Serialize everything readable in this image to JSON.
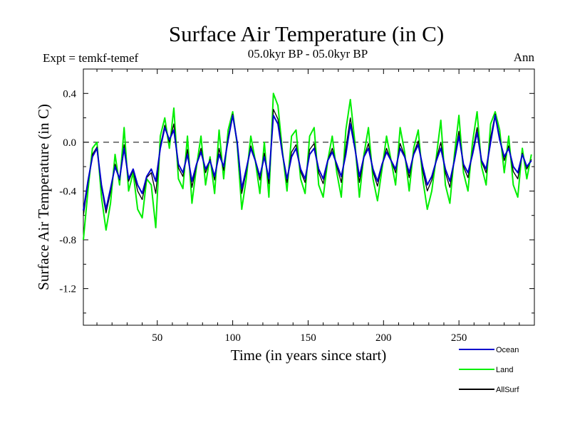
{
  "chart_data": {
    "type": "line",
    "title": "Surface Air Temperature (in C)",
    "subtitle": "05.0kyr BP - 05.0kyr BP",
    "experiment_label": "Expt = temkf-temef",
    "period_label": "Ann",
    "xlabel": "Time (in years since start)",
    "ylabel": "Surface Air Temperature (in C)",
    "xlim": [
      1,
      300
    ],
    "ylim": [
      -1.5,
      0.6
    ],
    "xticks": [
      50,
      100,
      150,
      200,
      250
    ],
    "yticks": [
      0.4,
      0.0,
      -0.4,
      -0.8,
      -1.2
    ],
    "ytick_labels": [
      "0.4",
      "0.0",
      "-0.4",
      "-0.8",
      "-1.2"
    ],
    "reference_line_y": 0.0,
    "legend_position": "bottom-right",
    "series": [
      {
        "name": "Ocean",
        "color": "#0000cc",
        "x": [
          1,
          4,
          7,
          10,
          13,
          16,
          19,
          22,
          25,
          28,
          31,
          34,
          37,
          40,
          43,
          46,
          49,
          52,
          55,
          58,
          61,
          64,
          67,
          70,
          73,
          76,
          79,
          82,
          85,
          88,
          91,
          94,
          97,
          100,
          103,
          106,
          109,
          112,
          115,
          118,
          121,
          124,
          127,
          130,
          133,
          136,
          139,
          142,
          145,
          148,
          151,
          154,
          157,
          160,
          163,
          166,
          169,
          172,
          175,
          178,
          181,
          184,
          187,
          190,
          193,
          196,
          199,
          202,
          205,
          208,
          211,
          214,
          217,
          220,
          223,
          226,
          229,
          232,
          235,
          238,
          241,
          244,
          247,
          250,
          253,
          256,
          259,
          262,
          265,
          268,
          271,
          274,
          277,
          280,
          283,
          286,
          289,
          292,
          295,
          298
        ],
        "values": [
          -0.56,
          -0.32,
          -0.12,
          -0.05,
          -0.35,
          -0.55,
          -0.38,
          -0.2,
          -0.3,
          -0.05,
          -0.3,
          -0.22,
          -0.35,
          -0.42,
          -0.28,
          -0.22,
          -0.32,
          -0.05,
          0.12,
          0.02,
          0.1,
          -0.18,
          -0.25,
          -0.1,
          -0.32,
          -0.18,
          -0.08,
          -0.22,
          -0.15,
          -0.28,
          -0.1,
          -0.2,
          0.02,
          0.22,
          0.0,
          -0.38,
          -0.22,
          -0.05,
          -0.15,
          -0.28,
          -0.12,
          -0.3,
          0.22,
          0.15,
          -0.1,
          -0.3,
          -0.12,
          -0.05,
          -0.22,
          -0.3,
          -0.1,
          -0.05,
          -0.22,
          -0.3,
          -0.15,
          -0.08,
          -0.18,
          -0.28,
          -0.1,
          0.15,
          -0.05,
          -0.28,
          -0.12,
          -0.05,
          -0.22,
          -0.32,
          -0.18,
          -0.08,
          -0.15,
          -0.22,
          -0.05,
          -0.12,
          -0.25,
          -0.1,
          -0.02,
          -0.2,
          -0.35,
          -0.28,
          -0.15,
          -0.05,
          -0.22,
          -0.32,
          -0.15,
          0.05,
          -0.18,
          -0.25,
          -0.1,
          0.08,
          -0.15,
          -0.22,
          0.0,
          0.22,
          0.02,
          -0.12,
          -0.05,
          -0.2,
          -0.25,
          -0.1,
          -0.2,
          -0.15
        ]
      },
      {
        "name": "Land",
        "color": "#00ee00",
        "x": [
          1,
          4,
          7,
          10,
          13,
          16,
          19,
          22,
          25,
          28,
          31,
          34,
          37,
          40,
          43,
          46,
          49,
          52,
          55,
          58,
          61,
          64,
          67,
          70,
          73,
          76,
          79,
          82,
          85,
          88,
          91,
          94,
          97,
          100,
          103,
          106,
          109,
          112,
          115,
          118,
          121,
          124,
          127,
          130,
          133,
          136,
          139,
          142,
          145,
          148,
          151,
          154,
          157,
          160,
          163,
          166,
          169,
          172,
          175,
          178,
          181,
          184,
          187,
          190,
          193,
          196,
          199,
          202,
          205,
          208,
          211,
          214,
          217,
          220,
          223,
          226,
          229,
          232,
          235,
          238,
          241,
          244,
          247,
          250,
          253,
          256,
          259,
          262,
          265,
          268,
          271,
          274,
          277,
          280,
          283,
          286,
          289,
          292,
          295,
          298
        ],
        "values": [
          -0.8,
          -0.4,
          -0.05,
          0.0,
          -0.45,
          -0.72,
          -0.5,
          -0.1,
          -0.35,
          0.12,
          -0.4,
          -0.25,
          -0.55,
          -0.62,
          -0.3,
          -0.35,
          -0.7,
          0.05,
          0.2,
          -0.05,
          0.28,
          -0.3,
          -0.38,
          0.05,
          -0.5,
          -0.2,
          0.05,
          -0.35,
          -0.12,
          -0.42,
          0.1,
          -0.3,
          0.1,
          0.25,
          -0.02,
          -0.55,
          -0.3,
          0.05,
          -0.15,
          -0.42,
          0.0,
          -0.45,
          0.4,
          0.3,
          -0.08,
          -0.4,
          0.05,
          0.1,
          -0.3,
          -0.42,
          0.05,
          0.12,
          -0.35,
          -0.45,
          -0.15,
          0.05,
          -0.25,
          -0.45,
          0.1,
          0.35,
          0.0,
          -0.45,
          -0.1,
          0.12,
          -0.3,
          -0.48,
          -0.22,
          0.05,
          -0.15,
          -0.35,
          0.12,
          -0.08,
          -0.4,
          -0.05,
          0.1,
          -0.3,
          -0.55,
          -0.4,
          -0.12,
          0.18,
          -0.35,
          -0.5,
          -0.1,
          0.22,
          -0.25,
          -0.4,
          0.0,
          0.25,
          -0.2,
          -0.35,
          0.15,
          0.25,
          0.1,
          -0.25,
          0.05,
          -0.35,
          -0.45,
          -0.05,
          -0.3,
          -0.1
        ]
      },
      {
        "name": "AllSurf",
        "color": "#000000",
        "x": [
          1,
          4,
          7,
          10,
          13,
          16,
          19,
          22,
          25,
          28,
          31,
          34,
          37,
          40,
          43,
          46,
          49,
          52,
          55,
          58,
          61,
          64,
          67,
          70,
          73,
          76,
          79,
          82,
          85,
          88,
          91,
          94,
          97,
          100,
          103,
          106,
          109,
          112,
          115,
          118,
          121,
          124,
          127,
          130,
          133,
          136,
          139,
          142,
          145,
          148,
          151,
          154,
          157,
          160,
          163,
          166,
          169,
          172,
          175,
          178,
          181,
          184,
          187,
          190,
          193,
          196,
          199,
          202,
          205,
          208,
          211,
          214,
          217,
          220,
          223,
          226,
          229,
          232,
          235,
          238,
          241,
          244,
          247,
          250,
          253,
          256,
          259,
          262,
          265,
          268,
          271,
          274,
          277,
          280,
          283,
          286,
          289,
          292,
          295,
          298
        ],
        "values": [
          -0.6,
          -0.34,
          -0.1,
          -0.04,
          -0.37,
          -0.58,
          -0.41,
          -0.18,
          -0.31,
          -0.02,
          -0.32,
          -0.23,
          -0.4,
          -0.47,
          -0.29,
          -0.25,
          -0.42,
          -0.03,
          0.14,
          0.0,
          0.15,
          -0.21,
          -0.28,
          -0.06,
          -0.37,
          -0.19,
          -0.05,
          -0.25,
          -0.14,
          -0.31,
          -0.05,
          -0.23,
          0.04,
          0.23,
          0.0,
          -0.42,
          -0.24,
          -0.03,
          -0.15,
          -0.31,
          -0.09,
          -0.34,
          0.27,
          0.19,
          -0.09,
          -0.33,
          -0.08,
          -0.02,
          -0.24,
          -0.33,
          -0.06,
          -0.01,
          -0.25,
          -0.34,
          -0.15,
          -0.05,
          -0.2,
          -0.33,
          -0.05,
          0.2,
          -0.04,
          -0.33,
          -0.12,
          -0.01,
          -0.24,
          -0.36,
          -0.19,
          -0.05,
          -0.15,
          -0.25,
          -0.01,
          -0.11,
          -0.29,
          -0.09,
          0.01,
          -0.23,
          -0.4,
          -0.31,
          -0.14,
          0.0,
          -0.25,
          -0.37,
          -0.14,
          0.09,
          -0.2,
          -0.29,
          -0.08,
          0.12,
          -0.16,
          -0.25,
          0.04,
          0.23,
          0.04,
          -0.15,
          -0.03,
          -0.24,
          -0.3,
          -0.09,
          -0.22,
          -0.14
        ]
      }
    ]
  }
}
